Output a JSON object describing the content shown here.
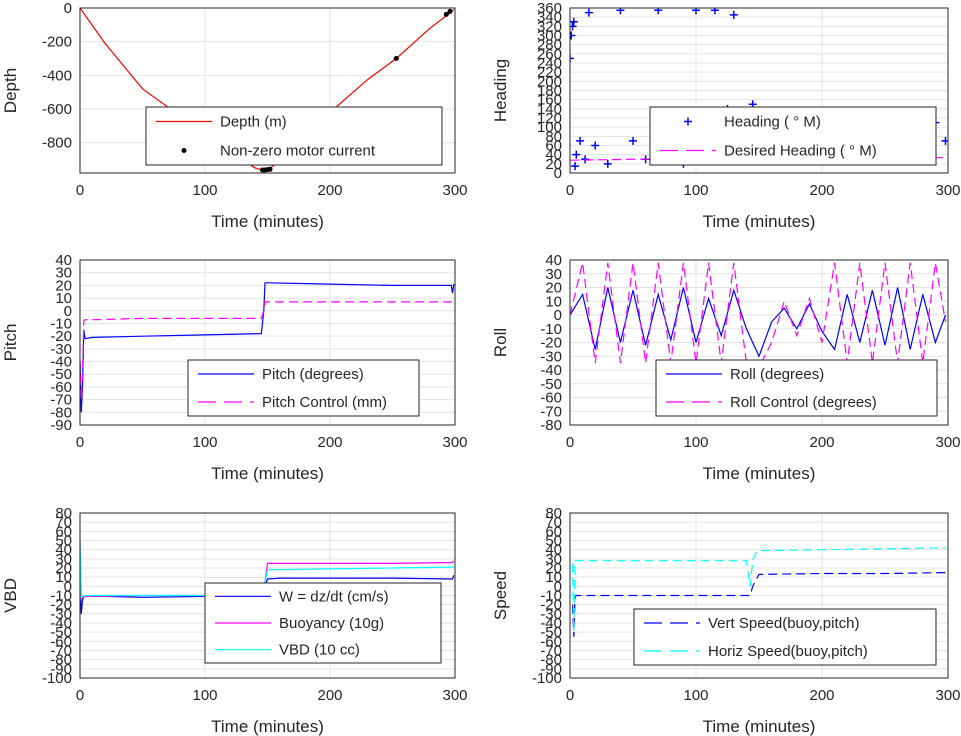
{
  "chart_data": [
    {
      "id": "depth",
      "type": "line",
      "xlabel": "Time (minutes)",
      "ylabel": "Depth",
      "xlim": [
        0,
        300
      ],
      "ylim": [
        -980,
        0
      ],
      "xticks": [
        0,
        100,
        200,
        300
      ],
      "yticks": [
        0,
        -200,
        -400,
        -600,
        -800
      ],
      "grid": true,
      "legend": {
        "placement": "center-bottom",
        "entries": [
          "Depth (m)",
          "Non-zero motor current"
        ]
      },
      "series": [
        {
          "name": "Depth (m)",
          "style": "solid",
          "color": "#ff0000",
          "x": [
            0,
            20,
            50,
            80,
            110,
            140,
            146,
            150,
            152,
            170,
            200,
            230,
            253,
            280,
            295,
            299
          ],
          "y": [
            0,
            -210,
            -480,
            -640,
            -800,
            -950,
            -962,
            -962,
            -955,
            -820,
            -620,
            -425,
            -300,
            -120,
            -35,
            -10
          ]
        },
        {
          "name": "Non-zero motor current",
          "style": "marker",
          "color": "#000000",
          "x": [
            146,
            148,
            150,
            152,
            253,
            293,
            296
          ],
          "y": [
            -962,
            -962,
            -960,
            -958,
            -300,
            -38,
            -20
          ]
        }
      ]
    },
    {
      "id": "heading",
      "type": "line",
      "xlabel": "Time (minutes)",
      "ylabel": "Heading",
      "xlim": [
        0,
        300
      ],
      "ylim": [
        0,
        360
      ],
      "xticks": [
        0,
        100,
        200,
        300
      ],
      "yticks": [
        0,
        20,
        40,
        60,
        80,
        100,
        120,
        140,
        160,
        180,
        200,
        220,
        240,
        260,
        280,
        300,
        320,
        340,
        360
      ],
      "grid": true,
      "legend": {
        "placement": "center",
        "entries": [
          "Heading ( ° M)",
          "Desired Heading ( ° M)"
        ]
      },
      "series": [
        {
          "name": "Heading ( ° M)",
          "style": "plus",
          "color": "#0000ff",
          "x": [
            0,
            1,
            2,
            3,
            4,
            5,
            8,
            12,
            15,
            20,
            30,
            40,
            50,
            60,
            70,
            80,
            90,
            95,
            100,
            105,
            110,
            115,
            120,
            125,
            130,
            135,
            140,
            145,
            150,
            160,
            170,
            180,
            190,
            200,
            210,
            220,
            230,
            240,
            250,
            260,
            270,
            280,
            290,
            298
          ],
          "y": [
            250,
            300,
            320,
            330,
            15,
            40,
            70,
            30,
            350,
            60,
            20,
            355,
            70,
            30,
            355,
            60,
            20,
            120,
            355,
            90,
            130,
            355,
            110,
            140,
            345,
            130,
            80,
            150,
            40,
            60,
            90,
            30,
            70,
            100,
            40,
            80,
            100,
            60,
            80,
            110,
            50,
            80,
            110,
            70
          ]
        },
        {
          "name": "Desired Heading ( ° M)",
          "style": "dashed",
          "color": "#ff00ff",
          "x": [
            0,
            50,
            100,
            150,
            200,
            250,
            300
          ],
          "y": [
            28,
            30,
            32,
            34,
            32,
            30,
            34
          ]
        }
      ]
    },
    {
      "id": "pitch",
      "type": "line",
      "xlabel": "Time (minutes)",
      "ylabel": "Pitch",
      "xlim": [
        0,
        300
      ],
      "ylim": [
        -90,
        40
      ],
      "xticks": [
        0,
        100,
        200,
        300
      ],
      "yticks": [
        40,
        30,
        20,
        10,
        0,
        -10,
        -20,
        -30,
        -40,
        -50,
        -60,
        -70,
        -80,
        -90
      ],
      "grid": true,
      "legend": {
        "placement": "bottom-right",
        "entries": [
          "Pitch (degrees)",
          "Pitch Control (mm)"
        ]
      },
      "series": [
        {
          "name": "Pitch (degrees)",
          "style": "solid",
          "color": "#0000ff",
          "x": [
            0,
            1,
            2,
            3,
            4,
            10,
            50,
            100,
            145,
            147,
            148,
            150,
            200,
            250,
            297,
            298,
            299
          ],
          "y": [
            -40,
            -80,
            -60,
            -15,
            -22,
            -21,
            -20,
            -19,
            -18,
            0,
            22,
            22,
            21,
            20,
            20,
            14,
            21
          ]
        },
        {
          "name": "Pitch Control (mm)",
          "style": "dashed",
          "color": "#ff00ff",
          "x": [
            0,
            1,
            2,
            3,
            4,
            10,
            50,
            100,
            145,
            147,
            148,
            150,
            200,
            250,
            299
          ],
          "y": [
            -40,
            -70,
            -50,
            -8,
            -7,
            -7,
            -6,
            -6,
            -6,
            0,
            7,
            7,
            7,
            7,
            7
          ]
        }
      ]
    },
    {
      "id": "roll",
      "type": "line",
      "xlabel": "Time (minutes)",
      "ylabel": "Roll",
      "xlim": [
        0,
        300
      ],
      "ylim": [
        -80,
        40
      ],
      "xticks": [
        0,
        100,
        200,
        300
      ],
      "yticks": [
        40,
        30,
        20,
        10,
        0,
        -10,
        -20,
        -30,
        -40,
        -50,
        -60,
        -70,
        -80
      ],
      "grid": true,
      "legend": {
        "placement": "bottom-right",
        "entries": [
          "Roll (degrees)",
          "Roll Control (degrees)"
        ]
      },
      "series": [
        {
          "name": "Roll (degrees)",
          "style": "solid",
          "color": "#0000ff",
          "x": [
            0,
            10,
            20,
            30,
            40,
            50,
            60,
            70,
            80,
            90,
            100,
            110,
            120,
            130,
            140,
            150,
            160,
            170,
            180,
            190,
            200,
            210,
            220,
            230,
            240,
            250,
            260,
            270,
            280,
            290,
            298
          ],
          "y": [
            0,
            15,
            -25,
            20,
            -20,
            18,
            -22,
            15,
            -18,
            20,
            -20,
            12,
            -15,
            18,
            -10,
            -30,
            -5,
            5,
            -10,
            8,
            -12,
            -25,
            15,
            -20,
            18,
            -22,
            20,
            -25,
            15,
            -20,
            0
          ]
        },
        {
          "name": "Roll Control (degrees)",
          "style": "dashed",
          "color": "#ff00ff",
          "x": [
            0,
            10,
            20,
            30,
            40,
            50,
            60,
            70,
            80,
            90,
            100,
            110,
            120,
            130,
            140,
            150,
            160,
            170,
            180,
            190,
            200,
            210,
            220,
            230,
            240,
            250,
            260,
            270,
            280,
            290,
            298
          ],
          "y": [
            0,
            38,
            -35,
            38,
            -35,
            38,
            -35,
            38,
            -35,
            38,
            -35,
            38,
            -35,
            38,
            -35,
            -38,
            -20,
            10,
            -15,
            12,
            -20,
            38,
            -35,
            38,
            -35,
            38,
            -35,
            38,
            -35,
            38,
            -5
          ]
        }
      ]
    },
    {
      "id": "vbd",
      "type": "line",
      "xlabel": "Time (minutes)",
      "ylabel": "VBD",
      "xlim": [
        0,
        300
      ],
      "ylim": [
        -100,
        80
      ],
      "xticks": [
        0,
        100,
        200,
        300
      ],
      "yticks": [
        80,
        70,
        60,
        50,
        40,
        30,
        20,
        10,
        0,
        -10,
        -20,
        -30,
        -40,
        -50,
        -60,
        -70,
        -80,
        -90,
        -100
      ],
      "tick_labels": [
        "80",
        "70",
        "60",
        "50",
        "40",
        "30",
        "20",
        "10",
        "0",
        "-10",
        "-20",
        "-30",
        "-40",
        "-50",
        "-60",
        "-70",
        "-80",
        "-90",
        "-100"
      ],
      "grid": true,
      "legend": {
        "placement": "bottom-center",
        "entries": [
          "W = dz/dt (cm/s)",
          "Buoyancy (10g)",
          "VBD (10 cc)"
        ]
      },
      "series": [
        {
          "name": "W = dz/dt (cm/s)",
          "style": "solid",
          "color": "#0000ff",
          "x": [
            0,
            1,
            2,
            3,
            5,
            20,
            50,
            100,
            140,
            145,
            148,
            150,
            160,
            200,
            250,
            298,
            299
          ],
          "y": [
            10,
            -30,
            -15,
            -11,
            -11,
            -11,
            -12,
            -11,
            -11,
            -11,
            0,
            8,
            9,
            9,
            9,
            8,
            12
          ]
        },
        {
          "name": "Buoyancy (10g)",
          "style": "solid",
          "color": "#ff00ff",
          "x": [
            0,
            1,
            2,
            5,
            50,
            100,
            145,
            148,
            150,
            200,
            250,
            298,
            299
          ],
          "y": [
            50,
            -15,
            -12,
            -11,
            -10,
            -10,
            -10,
            5,
            25,
            25,
            25,
            26,
            28
          ]
        },
        {
          "name": "VBD (10 cc)",
          "style": "solid",
          "color": "#00ffff",
          "x": [
            0,
            1,
            2,
            5,
            50,
            100,
            145,
            148,
            150,
            200,
            250,
            298,
            299
          ],
          "y": [
            50,
            -13,
            -11,
            -10,
            -10,
            -10,
            -10,
            5,
            18,
            19,
            20,
            21,
            22
          ]
        }
      ]
    },
    {
      "id": "speed",
      "type": "line",
      "xlabel": "Time (minutes)",
      "ylabel": "Speed",
      "xlim": [
        0,
        300
      ],
      "ylim": [
        -100,
        80
      ],
      "xticks": [
        0,
        100,
        200,
        300
      ],
      "yticks": [
        80,
        70,
        60,
        50,
        40,
        30,
        20,
        10,
        0,
        -10,
        -20,
        -30,
        -40,
        -50,
        -60,
        -70,
        -80,
        -90,
        -100
      ],
      "tick_labels": [
        "80",
        "70",
        "60",
        "50",
        "40",
        "30",
        "20",
        "10",
        "0",
        "-10",
        "-20",
        "-30",
        "-40",
        "-50",
        "-60",
        "-70",
        "-80",
        "-90",
        "-100"
      ],
      "grid": true,
      "legend": {
        "placement": "bottom-right",
        "entries": [
          "Vert Speed(buoy,pitch)",
          "Horiz Speed(buoy,pitch)"
        ]
      },
      "series": [
        {
          "name": "Vert Speed(buoy,pitch)",
          "style": "dashed",
          "color": "#0000ff",
          "x": [
            2,
            3,
            4,
            5,
            50,
            100,
            143,
            145,
            147,
            148,
            150,
            200,
            250,
            298
          ],
          "y": [
            -20,
            -55,
            -12,
            -10,
            -10,
            -10,
            -10,
            0,
            5,
            8,
            13,
            14,
            14,
            15
          ]
        },
        {
          "name": "Horiz Speed(buoy,pitch)",
          "style": "dashed",
          "color": "#00ffff",
          "x": [
            2,
            3,
            4,
            5,
            50,
            100,
            140,
            143,
            145,
            148,
            150,
            200,
            250,
            298
          ],
          "y": [
            25,
            -50,
            28,
            28,
            28,
            28,
            28,
            0,
            28,
            38,
            39,
            40,
            41,
            42
          ]
        }
      ]
    }
  ]
}
